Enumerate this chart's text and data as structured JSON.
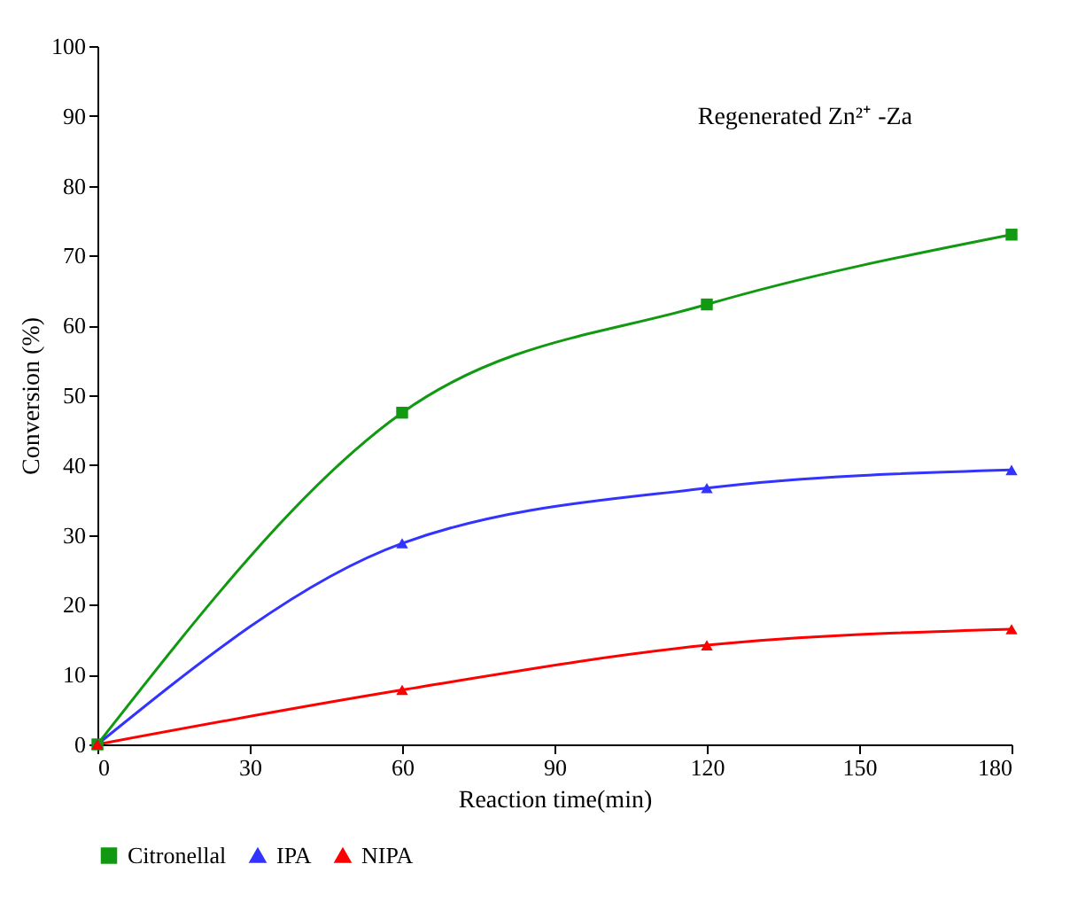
{
  "chart_data": {
    "type": "line",
    "xlabel": "Reaction time(min)",
    "ylabel": "Conversion (%)",
    "x": [
      0,
      60,
      120,
      180
    ],
    "series": [
      {
        "name": "Citronellal",
        "color": "#119911",
        "marker": "square",
        "values": [
          0,
          47.5,
          63,
          73
        ]
      },
      {
        "name": "IPA",
        "color": "#3333ff",
        "marker": "triangle",
        "values": [
          0,
          28.8,
          36.7,
          39.3
        ]
      },
      {
        "name": "NIPA",
        "color": "#ff0000",
        "marker": "triangle",
        "values": [
          0,
          7.8,
          14.2,
          16.5
        ]
      }
    ],
    "xlim": [
      0,
      180
    ],
    "xticks": [
      0,
      30,
      60,
      90,
      120,
      150,
      180
    ],
    "ylim": [
      0,
      100
    ],
    "yticks": [
      0,
      10,
      20,
      30,
      40,
      50,
      60,
      70,
      80,
      90,
      100
    ],
    "annotations": [
      "Regenerated Zn²⁺ -Za"
    ],
    "grid": false,
    "legend": "bottom",
    "line_style": "solid"
  }
}
